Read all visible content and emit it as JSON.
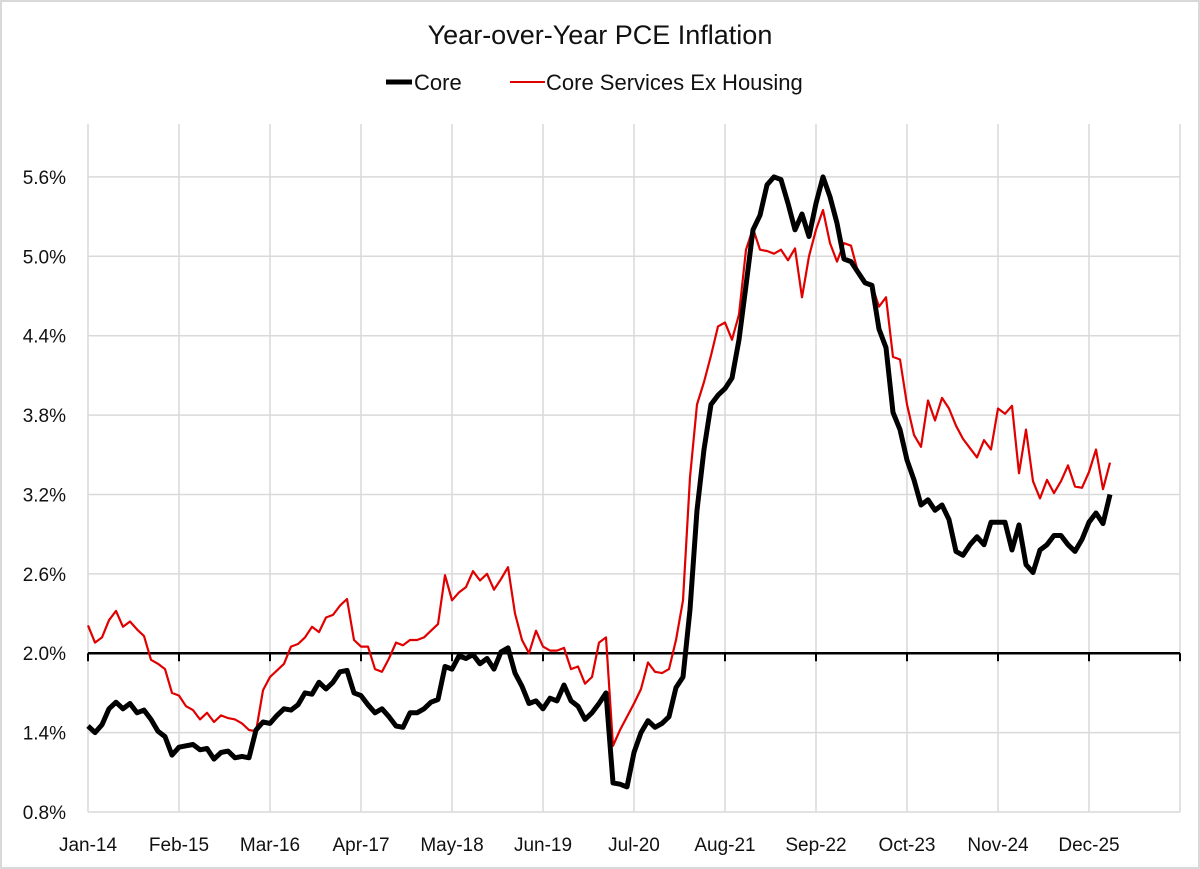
{
  "chart_data": {
    "type": "line",
    "title": "Year-over-Year PCE Inflation",
    "xlabel": "",
    "ylabel": "",
    "legend_position": "top",
    "grid": true,
    "ylim": [
      0.8,
      6.0
    ],
    "y_ticks": [
      0.8,
      1.4,
      2.0,
      2.6,
      3.2,
      3.8,
      4.4,
      5.0,
      5.6
    ],
    "y_tick_labels": [
      "0.8%",
      "1.4%",
      "2.0%",
      "2.6%",
      "3.2%",
      "3.8%",
      "4.4%",
      "5.0%",
      "5.6%"
    ],
    "x_axis_crosses_at": 2.0,
    "x_start": "Jan-14",
    "x_frequency": "monthly",
    "x_tick_labels": [
      "Jan-14",
      "Feb-15",
      "Mar-16",
      "Apr-17",
      "May-18",
      "Jun-19",
      "Jul-20",
      "Aug-21",
      "Sep-22",
      "Oct-23",
      "Nov-24",
      "Dec-25"
    ],
    "series": [
      {
        "name": "Core",
        "color": "#000000",
        "values": [
          1.45,
          1.4,
          1.46,
          1.58,
          1.63,
          1.58,
          1.62,
          1.55,
          1.57,
          1.5,
          1.41,
          1.37,
          1.23,
          1.29,
          1.3,
          1.31,
          1.27,
          1.28,
          1.2,
          1.25,
          1.26,
          1.21,
          1.22,
          1.21,
          1.42,
          1.48,
          1.47,
          1.53,
          1.58,
          1.57,
          1.61,
          1.7,
          1.69,
          1.78,
          1.73,
          1.78,
          1.86,
          1.87,
          1.7,
          1.68,
          1.61,
          1.55,
          1.58,
          1.52,
          1.45,
          1.44,
          1.55,
          1.55,
          1.58,
          1.63,
          1.65,
          1.9,
          1.88,
          1.98,
          1.96,
          1.99,
          1.92,
          1.96,
          1.88,
          2.01,
          2.04,
          1.85,
          1.75,
          1.62,
          1.64,
          1.58,
          1.66,
          1.64,
          1.76,
          1.64,
          1.6,
          1.5,
          1.55,
          1.62,
          1.7,
          1.02,
          1.01,
          0.99,
          1.25,
          1.4,
          1.49,
          1.44,
          1.47,
          1.52,
          1.74,
          1.82,
          2.33,
          3.08,
          3.54,
          3.88,
          3.95,
          4.0,
          4.08,
          4.37,
          4.78,
          5.2,
          5.31,
          5.54,
          5.6,
          5.58,
          5.4,
          5.2,
          5.32,
          5.15,
          5.4,
          5.6,
          5.45,
          5.25,
          4.98,
          4.96,
          4.88,
          4.8,
          4.78,
          4.45,
          4.31,
          3.82,
          3.69,
          3.46,
          3.31,
          3.12,
          3.16,
          3.08,
          3.12,
          3.01,
          2.77,
          2.74,
          2.82,
          2.88,
          2.82,
          2.99,
          2.99,
          2.99,
          2.78,
          2.97,
          2.67,
          2.61,
          2.78,
          2.82,
          2.89,
          2.89,
          2.82,
          2.77,
          2.86,
          2.99,
          3.06,
          2.98,
          3.2
        ]
      },
      {
        "name": "Core Services Ex Housing",
        "color": "#e00000",
        "values": [
          2.21,
          2.08,
          2.12,
          2.25,
          2.32,
          2.2,
          2.24,
          2.18,
          2.13,
          1.95,
          1.92,
          1.88,
          1.7,
          1.68,
          1.6,
          1.57,
          1.5,
          1.55,
          1.48,
          1.53,
          1.51,
          1.5,
          1.47,
          1.42,
          1.41,
          1.72,
          1.82,
          1.87,
          1.92,
          2.05,
          2.07,
          2.12,
          2.2,
          2.16,
          2.27,
          2.29,
          2.36,
          2.41,
          2.1,
          2.05,
          2.05,
          1.88,
          1.86,
          1.96,
          2.08,
          2.06,
          2.1,
          2.1,
          2.12,
          2.17,
          2.22,
          2.59,
          2.4,
          2.46,
          2.5,
          2.62,
          2.55,
          2.6,
          2.48,
          2.56,
          2.65,
          2.3,
          2.1,
          2.0,
          2.17,
          2.05,
          2.02,
          2.02,
          2.04,
          1.88,
          1.9,
          1.77,
          1.82,
          2.08,
          2.12,
          1.3,
          1.42,
          1.52,
          1.62,
          1.73,
          1.93,
          1.86,
          1.85,
          1.88,
          2.1,
          2.4,
          3.33,
          3.88,
          4.05,
          4.25,
          4.47,
          4.5,
          4.37,
          4.56,
          5.05,
          5.21,
          5.05,
          5.04,
          5.02,
          5.05,
          4.97,
          5.06,
          4.69,
          5.0,
          5.2,
          5.35,
          5.1,
          4.96,
          5.1,
          5.08,
          4.88,
          4.8,
          4.78,
          4.62,
          4.69,
          4.24,
          4.22,
          3.88,
          3.65,
          3.56,
          3.91,
          3.76,
          3.93,
          3.85,
          3.72,
          3.62,
          3.55,
          3.48,
          3.61,
          3.54,
          3.85,
          3.81,
          3.87,
          3.36,
          3.69,
          3.3,
          3.17,
          3.31,
          3.21,
          3.3,
          3.42,
          3.26,
          3.25,
          3.37,
          3.54,
          3.24,
          3.44
        ]
      }
    ]
  }
}
